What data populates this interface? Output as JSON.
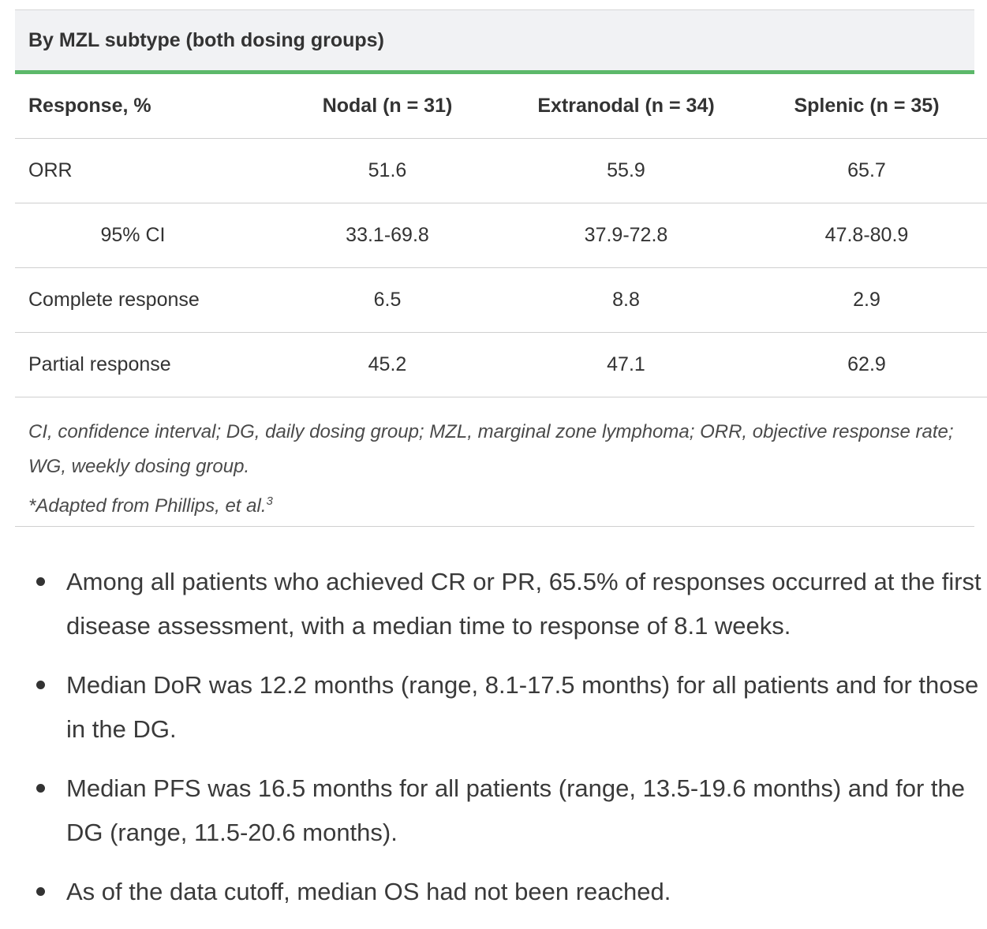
{
  "table": {
    "caption": "By MZL subtype (both dosing groups)",
    "headers": [
      "Response, %",
      "Nodal (n = 31)",
      "Extranodal (n = 34)",
      "Splenic (n = 35)"
    ],
    "rows": [
      {
        "label": "ORR",
        "nodal": "51.6",
        "extranodal": "55.9",
        "splenic": "65.7"
      },
      {
        "label": "95% CI",
        "nodal": "33.1-69.8",
        "extranodal": "37.9-72.8",
        "splenic": "47.8-80.9"
      },
      {
        "label": "Complete response",
        "nodal": "6.5",
        "extranodal": "8.8",
        "splenic": "2.9"
      },
      {
        "label": "Partial response",
        "nodal": "45.2",
        "extranodal": "47.1",
        "splenic": "62.9"
      }
    ],
    "footnote_abbrev": "CI, confidence interval; DG, daily dosing group; MZL, marginal zone lymphoma; ORR, objective response rate; WG, weekly dosing group.",
    "footnote_source": "*Adapted from Phillips, et al.",
    "footnote_ref": "3"
  },
  "bullets": [
    "Among all patients who achieved CR or PR, 65.5% of responses occurred at the first disease assessment, with a median time to response of 8.1 weeks.",
    "Median DoR was 12.2 months (range, 8.1-17.5 months) for all patients and for those in the DG.",
    "Median PFS was 16.5 months for all patients (range, 13.5-19.6 months) and for the DG (range, 11.5-20.6 months).",
    "As of the data cutoff, median OS had not been reached."
  ]
}
